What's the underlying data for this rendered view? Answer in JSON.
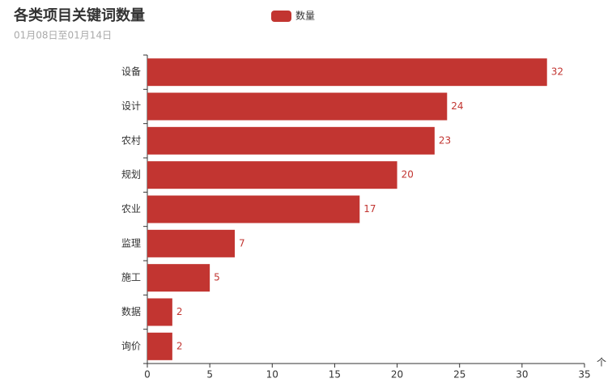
{
  "chart_data": {
    "type": "hbar",
    "title": "各类项目关键词数量",
    "subtitle": "01月08日至01月14日",
    "x_label": "个",
    "categories": [
      "设备",
      "设计",
      "农村",
      "规划",
      "农业",
      "监理",
      "施工",
      "数据",
      "询价"
    ],
    "series": [
      {
        "name": "数量",
        "color": "#c23531",
        "values": [
          32,
          24,
          23,
          20,
          17,
          7,
          5,
          2,
          2
        ]
      }
    ],
    "xlim": [
      0,
      35
    ],
    "xticks": [
      0,
      5,
      10,
      15,
      20,
      25,
      30,
      35
    ],
    "grid": false,
    "legend": "top"
  }
}
